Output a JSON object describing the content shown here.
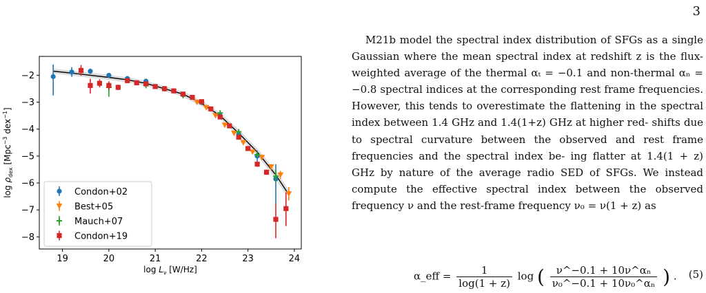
{
  "page": {
    "number": "3"
  },
  "figure": {
    "legend": [
      "Condon+02",
      "Best+05",
      "Mauch+07",
      "Condon+19"
    ]
  },
  "chart_data": {
    "type": "scatter",
    "xlabel": "log L_ν [W/Hz]",
    "ylabel": "log ρ_dex [Mpc^-3 dex^-1]",
    "xlim": [
      18.5,
      24.15
    ],
    "ylim": [
      -8.45,
      -1.3
    ],
    "xticks": [
      19,
      20,
      21,
      22,
      23,
      24
    ],
    "yticks": [
      -2,
      -3,
      -4,
      -5,
      -6,
      -7,
      -8
    ],
    "grid": false,
    "legend_position": "lower-left",
    "fit_curve": {
      "description_visible": false,
      "x": [
        18.8,
        19.2,
        19.6,
        20.0,
        20.4,
        20.8,
        21.2,
        21.6,
        22.0,
        22.4,
        22.8,
        23.2,
        23.6,
        23.85
      ],
      "y": [
        -1.85,
        -1.92,
        -2.0,
        -2.08,
        -2.17,
        -2.3,
        -2.5,
        -2.7,
        -3.05,
        -3.5,
        -4.15,
        -4.85,
        -5.7,
        -6.35
      ]
    },
    "series": [
      {
        "name": "Condon+02",
        "marker": "circle",
        "color": "#1f77b4",
        "points": [
          {
            "x": 18.8,
            "y": -2.05,
            "yerr": [
              0.7,
              0.45
            ]
          },
          {
            "x": 19.2,
            "y": -1.88,
            "yerr": [
              0.18,
              0.18
            ]
          },
          {
            "x": 19.6,
            "y": -1.85,
            "yerr": [
              0.1,
              0.1
            ]
          },
          {
            "x": 20.0,
            "y": -2.0,
            "yerr": [
              0.06,
              0.06
            ]
          },
          {
            "x": 20.4,
            "y": -2.12,
            "yerr": [
              0.05,
              0.05
            ]
          },
          {
            "x": 20.8,
            "y": -2.22,
            "yerr": [
              0.05,
              0.05
            ]
          },
          {
            "x": 21.2,
            "y": -2.5,
            "yerr": [
              0.05,
              0.05
            ]
          },
          {
            "x": 21.6,
            "y": -2.72,
            "yerr": [
              0.05,
              0.05
            ]
          },
          {
            "x": 22.0,
            "y": -3.0,
            "yerr": [
              0.05,
              0.05
            ]
          },
          {
            "x": 22.4,
            "y": -3.5,
            "yerr": [
              0.05,
              0.05
            ]
          },
          {
            "x": 22.8,
            "y": -4.2,
            "yerr": [
              0.06,
              0.06
            ]
          },
          {
            "x": 23.2,
            "y": -5.0,
            "yerr": [
              0.2,
              0.2
            ]
          },
          {
            "x": 23.6,
            "y": -5.85,
            "yerr": [
              0.9,
              0.55
            ]
          }
        ]
      },
      {
        "name": "Best+05",
        "marker": "triangle-down",
        "color": "#ff7f0e",
        "points": [
          {
            "x": 21.9,
            "y": -3.0,
            "yerr": [
              0.05,
              0.05
            ]
          },
          {
            "x": 22.1,
            "y": -3.2,
            "yerr": [
              0.05,
              0.05
            ]
          },
          {
            "x": 22.3,
            "y": -3.5,
            "yerr": [
              0.05,
              0.05
            ]
          },
          {
            "x": 22.5,
            "y": -3.85,
            "yerr": [
              0.05,
              0.05
            ]
          },
          {
            "x": 22.7,
            "y": -4.15,
            "yerr": [
              0.05,
              0.05
            ]
          },
          {
            "x": 22.9,
            "y": -4.5,
            "yerr": [
              0.05,
              0.05
            ]
          },
          {
            "x": 23.1,
            "y": -4.85,
            "yerr": [
              0.05,
              0.05
            ]
          },
          {
            "x": 23.3,
            "y": -5.05,
            "yerr": [
              0.1,
              0.1
            ]
          },
          {
            "x": 23.5,
            "y": -5.4,
            "yerr": [
              0.1,
              0.1
            ]
          },
          {
            "x": 23.7,
            "y": -5.7,
            "yerr": [
              0.15,
              0.15
            ]
          },
          {
            "x": 23.88,
            "y": -6.4,
            "yerr": [
              0.25,
              0.25
            ]
          }
        ]
      },
      {
        "name": "Mauch+07",
        "marker": "plus",
        "color": "#2ca02c",
        "points": [
          {
            "x": 20.0,
            "y": -2.45,
            "yerr": [
              0.35,
              0.2
            ]
          },
          {
            "x": 20.8,
            "y": -2.38,
            "yerr": [
              0.05,
              0.05
            ]
          },
          {
            "x": 21.2,
            "y": -2.5,
            "yerr": [
              0.05,
              0.05
            ]
          },
          {
            "x": 21.6,
            "y": -2.75,
            "yerr": [
              0.05,
              0.05
            ]
          },
          {
            "x": 22.0,
            "y": -3.0,
            "yerr": [
              0.05,
              0.05
            ]
          },
          {
            "x": 22.4,
            "y": -3.4,
            "yerr": [
              0.05,
              0.05
            ]
          },
          {
            "x": 22.8,
            "y": -4.1,
            "yerr": [
              0.05,
              0.05
            ]
          },
          {
            "x": 23.2,
            "y": -4.95,
            "yerr": [
              0.1,
              0.1
            ]
          },
          {
            "x": 23.6,
            "y": -5.75,
            "yerr": [
              0.25,
              0.25
            ]
          }
        ]
      },
      {
        "name": "Condon+19",
        "marker": "square",
        "color": "#d62728",
        "points": [
          {
            "x": 19.4,
            "y": -1.82,
            "yerr": [
              0.2,
              0.2
            ]
          },
          {
            "x": 19.6,
            "y": -2.38,
            "yerr": [
              0.3,
              0.25
            ]
          },
          {
            "x": 19.8,
            "y": -2.3,
            "yerr": [
              0.15,
              0.15
            ]
          },
          {
            "x": 20.0,
            "y": -2.38,
            "yerr": [
              0.15,
              0.15
            ]
          },
          {
            "x": 20.2,
            "y": -2.45,
            "yerr": [
              0.1,
              0.1
            ]
          },
          {
            "x": 20.4,
            "y": -2.2,
            "yerr": [
              0.05,
              0.05
            ]
          },
          {
            "x": 20.6,
            "y": -2.28,
            "yerr": [
              0.05,
              0.05
            ]
          },
          {
            "x": 20.8,
            "y": -2.32,
            "yerr": [
              0.05,
              0.05
            ]
          },
          {
            "x": 21.0,
            "y": -2.42,
            "yerr": [
              0.05,
              0.05
            ]
          },
          {
            "x": 21.2,
            "y": -2.5,
            "yerr": [
              0.05,
              0.05
            ]
          },
          {
            "x": 21.4,
            "y": -2.58,
            "yerr": [
              0.05,
              0.05
            ]
          },
          {
            "x": 21.6,
            "y": -2.7,
            "yerr": [
              0.05,
              0.05
            ]
          },
          {
            "x": 21.8,
            "y": -2.82,
            "yerr": [
              0.05,
              0.05
            ]
          },
          {
            "x": 22.0,
            "y": -2.98,
            "yerr": [
              0.05,
              0.05
            ]
          },
          {
            "x": 22.2,
            "y": -3.25,
            "yerr": [
              0.05,
              0.05
            ]
          },
          {
            "x": 22.4,
            "y": -3.55,
            "yerr": [
              0.05,
              0.05
            ]
          },
          {
            "x": 22.6,
            "y": -3.88,
            "yerr": [
              0.05,
              0.05
            ]
          },
          {
            "x": 22.8,
            "y": -4.3,
            "yerr": [
              0.05,
              0.05
            ]
          },
          {
            "x": 23.0,
            "y": -4.72,
            "yerr": [
              0.05,
              0.05
            ]
          },
          {
            "x": 23.2,
            "y": -5.3,
            "yerr": [
              0.1,
              0.1
            ]
          },
          {
            "x": 23.4,
            "y": -5.6,
            "yerr": [
              0.1,
              0.1
            ]
          },
          {
            "x": 23.6,
            "y": -7.35,
            "yerr": [
              0.7,
              0.6
            ]
          },
          {
            "x": 23.82,
            "y": -6.95,
            "yerr": [
              0.65,
              0.6
            ]
          }
        ]
      }
    ]
  },
  "paragraph": {
    "lines": [
      "M21b model the spectral index distribution of SFGs",
      "as a single Gaussian where the mean spectral index at",
      "redshift z is the flux-weighted average of the thermal",
      "αₜ = −0.1 and non-thermal αₙ = −0.8 spectral indices",
      "at the corresponding rest frame frequencies. However,",
      "this tends to overestimate the flattening in the spectral",
      "index between 1.4 GHz and 1.4(1+z) GHz at higher red-",
      "shifts due to spectral curvature between the observed",
      "and rest frame frequencies and the spectral index be-",
      "ing flatter at 1.4(1 + z) GHz by nature of the average",
      "radio SED of SFGs. We instead compute the effective",
      "spectral index between the observed frequency ν and the",
      "rest-frame frequency ν₀ = ν(1 + z) as"
    ]
  },
  "equation": {
    "lhs": "α_eff =",
    "frac_num": "1",
    "frac_den": "log(1 + z)",
    "log": "log",
    "inner_num": "ν^−0.1 + 10ν^αₙ",
    "inner_den": "ν₀^−0.1 + 10ν₀^αₙ",
    "trailing": ".",
    "number": "(5)"
  }
}
